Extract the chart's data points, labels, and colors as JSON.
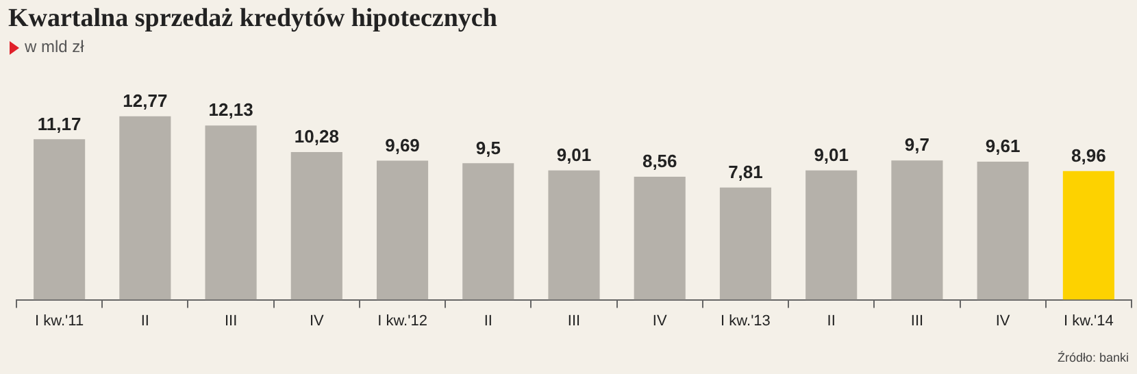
{
  "chart_data": {
    "type": "bar",
    "title": "Kwartalna sprzedaż kredytów hipotecznych",
    "subtitle": "w mld zł",
    "categories": [
      "I kw.'11",
      "II",
      "III",
      "IV",
      "I kw.'12",
      "II",
      "III",
      "IV",
      "I kw.'13",
      "II",
      "III",
      "IV",
      "I kw.'14"
    ],
    "values": [
      11.17,
      12.77,
      12.13,
      10.28,
      9.69,
      9.5,
      9.01,
      8.56,
      7.81,
      9.01,
      9.7,
      9.61,
      8.96
    ],
    "value_labels": [
      "11,17",
      "12,77",
      "12,13",
      "10,28",
      "9,69",
      "9,5",
      "9,01",
      "8,56",
      "7,81",
      "9,01",
      "9,7",
      "9,61",
      "8,96"
    ],
    "colors": [
      "#b5b1aa",
      "#b5b1aa",
      "#b5b1aa",
      "#b5b1aa",
      "#b5b1aa",
      "#b5b1aa",
      "#b5b1aa",
      "#b5b1aa",
      "#b5b1aa",
      "#b5b1aa",
      "#b5b1aa",
      "#b5b1aa",
      "#fdd200"
    ],
    "annotations": [
      "Źródło: banki"
    ],
    "legend": false
  }
}
